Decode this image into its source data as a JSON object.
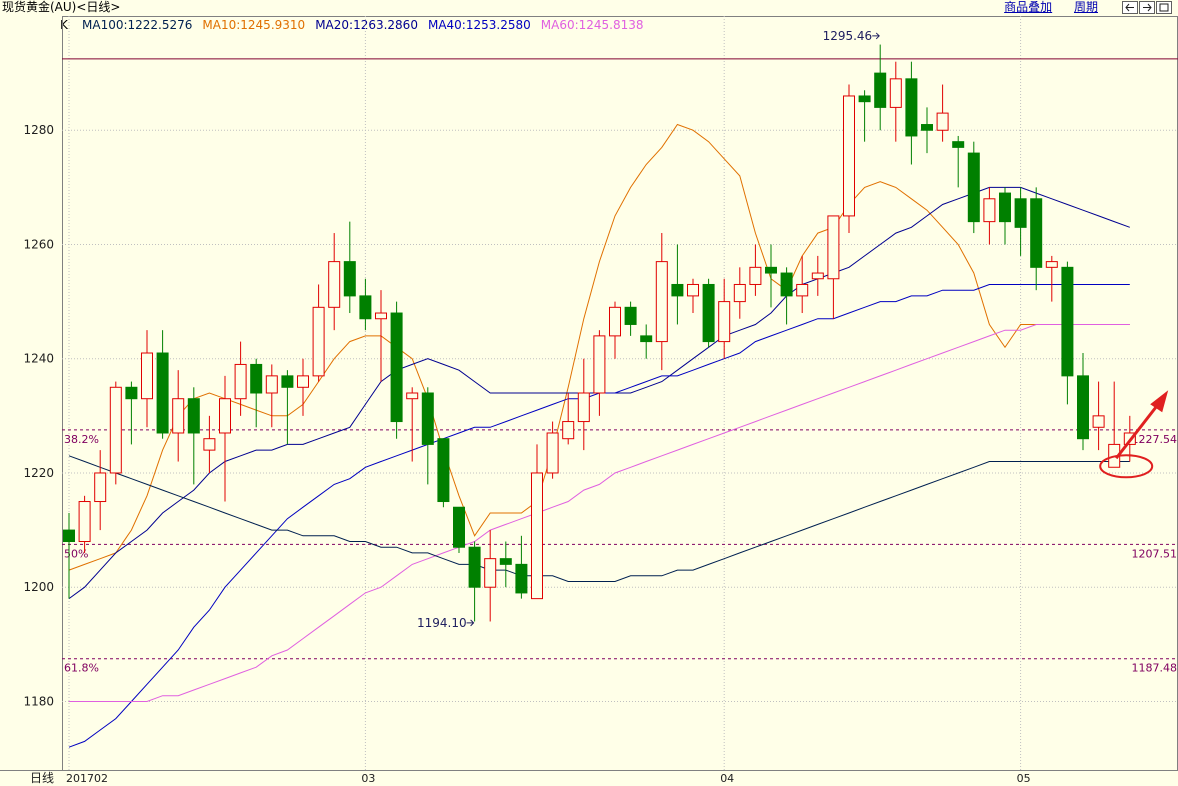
{
  "header": {
    "title": "现货黄金(AU)<日线>",
    "links": [
      "商品叠加",
      "周期"
    ],
    "nav_icons": [
      "arrow-left-icon",
      "arrow-right-icon",
      "expand-icon"
    ]
  },
  "ma_legend": {
    "label": "K",
    "items": [
      {
        "text": "MA100:1222.5276",
        "color": "#002050"
      },
      {
        "text": "MA10:1245.9310",
        "color": "#e07000"
      },
      {
        "text": "MA20:1263.2860",
        "color": "#000090"
      },
      {
        "text": "MA40:1253.2580",
        "color": "#0000c0"
      },
      {
        "text": "MA60:1245.8138",
        "color": "#e060e0"
      }
    ]
  },
  "chart_data": {
    "type": "candlestick",
    "title": "",
    "xlabel": "日线",
    "ylabel": "",
    "ylim": [
      1168,
      1300
    ],
    "y_ticks": [
      1180,
      1200,
      1220,
      1240,
      1260,
      1280
    ],
    "x_ticks": [
      {
        "label": "201702",
        "index": 0
      },
      {
        "label": "03",
        "index": 19
      },
      {
        "label": "04",
        "index": 42
      },
      {
        "label": "05",
        "index": 61
      }
    ],
    "candles": [
      [
        1210,
        1208,
        1213,
        1198
      ],
      [
        1208,
        1215,
        1216,
        1206
      ],
      [
        1215,
        1220,
        1224,
        1210
      ],
      [
        1220,
        1235,
        1236,
        1218
      ],
      [
        1235,
        1233,
        1236,
        1225
      ],
      [
        1233,
        1241,
        1245,
        1228
      ],
      [
        1241,
        1227,
        1245,
        1226
      ],
      [
        1227,
        1233,
        1238,
        1222
      ],
      [
        1233,
        1227,
        1235,
        1218
      ],
      [
        1224,
        1226,
        1230,
        1220
      ],
      [
        1227,
        1233,
        1237,
        1215
      ],
      [
        1233,
        1239,
        1243,
        1230
      ],
      [
        1239,
        1234,
        1240,
        1228
      ],
      [
        1234,
        1237,
        1239,
        1228
      ],
      [
        1237,
        1235,
        1238,
        1225
      ],
      [
        1235,
        1237,
        1240,
        1230
      ],
      [
        1237,
        1249,
        1253,
        1236
      ],
      [
        1249,
        1257,
        1262,
        1245
      ],
      [
        1257,
        1251,
        1264,
        1248
      ],
      [
        1251,
        1247,
        1254,
        1245
      ],
      [
        1247,
        1248,
        1252,
        1236
      ],
      [
        1248,
        1229,
        1250,
        1226
      ],
      [
        1233,
        1234,
        1235,
        1222
      ],
      [
        1234,
        1225,
        1235,
        1218
      ],
      [
        1226,
        1215,
        1226,
        1214
      ],
      [
        1214,
        1207,
        1214,
        1206
      ],
      [
        1207,
        1200,
        1208,
        1194
      ],
      [
        1200,
        1205,
        1210,
        1194
      ],
      [
        1205,
        1204,
        1208,
        1200
      ],
      [
        1204,
        1199,
        1209,
        1198
      ],
      [
        1198,
        1220,
        1225,
        1198
      ],
      [
        1220,
        1227,
        1229,
        1219
      ],
      [
        1226,
        1229,
        1234,
        1225
      ],
      [
        1229,
        1234,
        1240,
        1224
      ],
      [
        1234,
        1244,
        1245,
        1230
      ],
      [
        1244,
        1249,
        1250,
        1240
      ],
      [
        1249,
        1246,
        1250,
        1244
      ],
      [
        1244,
        1243,
        1246,
        1240
      ],
      [
        1243,
        1257,
        1262,
        1238
      ],
      [
        1253,
        1251,
        1260,
        1246
      ],
      [
        1251,
        1253,
        1254,
        1248
      ],
      [
        1253,
        1243,
        1254,
        1242
      ],
      [
        1243,
        1250,
        1254,
        1240
      ],
      [
        1250,
        1253,
        1256,
        1247
      ],
      [
        1253,
        1256,
        1260,
        1251
      ],
      [
        1256,
        1255,
        1260,
        1249
      ],
      [
        1255,
        1251,
        1256,
        1246
      ],
      [
        1251,
        1253,
        1258,
        1248
      ],
      [
        1254,
        1255,
        1258,
        1251
      ],
      [
        1254,
        1265,
        1265,
        1247
      ],
      [
        1265,
        1286,
        1288,
        1262
      ],
      [
        1286,
        1285,
        1287,
        1278
      ],
      [
        1290,
        1284,
        1295,
        1280
      ],
      [
        1284,
        1289,
        1292,
        1278
      ],
      [
        1289,
        1279,
        1292,
        1274
      ],
      [
        1281,
        1280,
        1284,
        1276
      ],
      [
        1280,
        1283,
        1288,
        1278
      ],
      [
        1278,
        1277,
        1279,
        1270
      ],
      [
        1276,
        1264,
        1278,
        1262
      ],
      [
        1264,
        1268,
        1270,
        1260
      ],
      [
        1269,
        1264,
        1270,
        1260
      ],
      [
        1268,
        1263,
        1270,
        1258
      ],
      [
        1268,
        1256,
        1270,
        1252
      ],
      [
        1256,
        1257,
        1258,
        1250
      ],
      [
        1256,
        1237,
        1257,
        1232
      ],
      [
        1237,
        1226,
        1241,
        1224
      ],
      [
        1228,
        1230,
        1236,
        1224
      ],
      [
        1221,
        1225,
        1236,
        1221
      ],
      [
        1225,
        1227,
        1230,
        1222
      ]
    ],
    "series": [
      {
        "name": "MA10",
        "color": "#e07000",
        "values": [
          1203,
          1204,
          1205,
          1206,
          1210,
          1216,
          1224,
          1230,
          1233,
          1234,
          1233,
          1232,
          1231,
          1230,
          1230,
          1232,
          1236,
          1240,
          1243,
          1244,
          1244,
          1242,
          1240,
          1233,
          1224,
          1216,
          1209,
          1213,
          1213,
          1213,
          1215,
          1224,
          1235,
          1247,
          1257,
          1265,
          1270,
          1274,
          1277,
          1281,
          1280,
          1278,
          1275,
          1272,
          1262,
          1254,
          1252,
          1258,
          1262,
          1263,
          1267,
          1270,
          1271,
          1270,
          1268,
          1266,
          1263,
          1260,
          1255,
          1246,
          1242,
          1246,
          1246,
          1246,
          1246,
          1246,
          1246,
          1246,
          1246
        ]
      },
      {
        "name": "MA20",
        "color": "#000090",
        "values": [
          1198,
          1200,
          1203,
          1206,
          1208,
          1210,
          1213,
          1215,
          1217,
          1220,
          1222,
          1223,
          1224,
          1224,
          1225,
          1225,
          1226,
          1227,
          1228,
          1232,
          1236,
          1238,
          1239,
          1240,
          1239,
          1238,
          1236,
          1234,
          1234,
          1234,
          1234,
          1234,
          1234,
          1234,
          1234,
          1234,
          1234,
          1235,
          1236,
          1238,
          1240,
          1242,
          1244,
          1245,
          1246,
          1248,
          1251,
          1253,
          1254,
          1255,
          1256,
          1258,
          1260,
          1262,
          1263,
          1265,
          1267,
          1268,
          1269,
          1270,
          1270,
          1270,
          1269,
          1268,
          1267,
          1266,
          1265,
          1264,
          1263
        ]
      },
      {
        "name": "MA40",
        "color": "#0000c0",
        "values": [
          1172,
          1173,
          1175,
          1177,
          1180,
          1183,
          1186,
          1189,
          1193,
          1196,
          1200,
          1203,
          1206,
          1209,
          1212,
          1214,
          1216,
          1218,
          1219,
          1221,
          1222,
          1223,
          1224,
          1225,
          1226,
          1227,
          1228,
          1228,
          1229,
          1230,
          1231,
          1232,
          1233,
          1233,
          1234,
          1234,
          1235,
          1236,
          1237,
          1237,
          1238,
          1239,
          1240,
          1241,
          1243,
          1244,
          1245,
          1246,
          1247,
          1247,
          1248,
          1249,
          1250,
          1250,
          1251,
          1251,
          1252,
          1252,
          1252,
          1253,
          1253,
          1253,
          1253,
          1253,
          1253,
          1253,
          1253,
          1253,
          1253
        ]
      },
      {
        "name": "MA60",
        "color": "#e060e0",
        "values": [
          1180,
          1180,
          1180,
          1180,
          1180,
          1180,
          1181,
          1181,
          1182,
          1183,
          1184,
          1185,
          1186,
          1188,
          1189,
          1191,
          1193,
          1195,
          1197,
          1199,
          1200,
          1202,
          1204,
          1205,
          1206,
          1207,
          1208,
          1210,
          1211,
          1212,
          1213,
          1214,
          1215,
          1217,
          1218,
          1220,
          1221,
          1222,
          1223,
          1224,
          1225,
          1226,
          1227,
          1228,
          1229,
          1230,
          1231,
          1232,
          1233,
          1234,
          1235,
          1236,
          1237,
          1238,
          1239,
          1240,
          1241,
          1242,
          1243,
          1244,
          1245,
          1245,
          1246,
          1246,
          1246,
          1246,
          1246,
          1246,
          1246
        ]
      },
      {
        "name": "MA100",
        "color": "#002050",
        "values": [
          1223,
          1222,
          1221,
          1220,
          1219,
          1218,
          1217,
          1216,
          1215,
          1214,
          1213,
          1212,
          1211,
          1210,
          1210,
          1209,
          1209,
          1209,
          1208,
          1208,
          1207,
          1207,
          1206,
          1206,
          1205,
          1204,
          1204,
          1203,
          1203,
          1202,
          1202,
          1202,
          1201,
          1201,
          1201,
          1201,
          1202,
          1202,
          1202,
          1203,
          1203,
          1204,
          1205,
          1206,
          1207,
          1208,
          1209,
          1210,
          1211,
          1212,
          1213,
          1214,
          1215,
          1216,
          1217,
          1218,
          1219,
          1220,
          1221,
          1222,
          1222,
          1222,
          1222,
          1222,
          1222,
          1222,
          1222,
          1222,
          1222
        ]
      }
    ],
    "fib_levels": [
      {
        "pct": "38.2%",
        "value": 1227.54,
        "label": "1227.54"
      },
      {
        "pct": "50%",
        "value": 1207.51,
        "label": "1207.51"
      },
      {
        "pct": "61.8%",
        "value": 1187.48,
        "label": "1187.48"
      }
    ],
    "resistance_line": 1292.5,
    "annotations": [
      {
        "text": "1295.46",
        "index": 52,
        "value": 1295.46
      },
      {
        "text": "1194.10",
        "index": 26,
        "value": 1194.1
      }
    ],
    "highlight": {
      "index": 67,
      "value": 1221
    },
    "colors": {
      "up": "#e00000",
      "down": "#008000",
      "grid": "#c0c0c0",
      "fib": "#800060",
      "resistance": "#800030",
      "axis_text": "#202020",
      "highlight": "#e02020"
    }
  }
}
